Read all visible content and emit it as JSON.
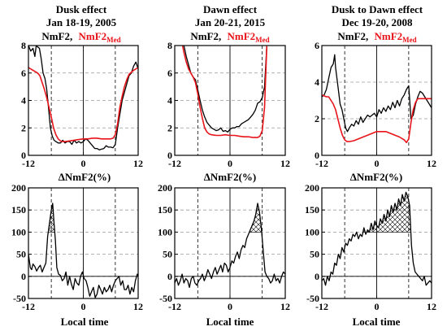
{
  "figure": {
    "xlabel": "Local time",
    "legend": {
      "obs": "NmF2,",
      "med_base": "NmF2",
      "med_sub": "Med",
      "obs_color": "#000000",
      "med_color": "#e8141a"
    }
  },
  "panels": [
    {
      "title": "Dusk effect",
      "subtitle": "Jan 18-19, 2005"
    },
    {
      "title": "Dawn effect",
      "subtitle": "Jan 20-21, 2015"
    },
    {
      "title": "Dusk to Dawn effect",
      "subtitle": "Dec 19-20, 2008"
    }
  ],
  "delta_label": "ΔNmF2(%)",
  "chart_data": [
    {
      "type": "line",
      "panel": "top-1",
      "xlim": [
        -12,
        12
      ],
      "ylim": [
        0,
        8
      ],
      "xticks": [
        "-12",
        "0",
        "12"
      ],
      "yticks": [
        "0",
        "2",
        "4",
        "6",
        "8"
      ],
      "vlines": [
        -7,
        7
      ],
      "series": [
        {
          "name": "NmF2",
          "color": "#000000",
          "x": [
            -12,
            -11.5,
            -11,
            -10.6,
            -10.3,
            -10,
            -9.6,
            -9.2,
            -8.8,
            -8.4,
            -8,
            -7.6,
            -7.2,
            -6.8,
            -6.4,
            -6,
            -5.5,
            -5,
            -4.5,
            -4,
            -3.5,
            -3,
            -2.5,
            -2,
            -1.5,
            -1,
            -0.5,
            0,
            0.5,
            1,
            1.5,
            2,
            2.5,
            3,
            3.5,
            4,
            4.5,
            5,
            5.5,
            6,
            6.5,
            7,
            7.5,
            8,
            8.5,
            9,
            9.5,
            10,
            10.5,
            11,
            11.5,
            12
          ],
          "y": [
            8,
            7.6,
            7.8,
            7.2,
            8,
            7.9,
            7.8,
            7,
            6,
            5.6,
            4.8,
            3.4,
            2,
            1.4,
            1.1,
            1.0,
            0.9,
            0.9,
            1.1,
            0.9,
            1.0,
            1.0,
            0.8,
            1.1,
            0.9,
            1.0,
            0.9,
            1.0,
            1.2,
            1.1,
            0.9,
            0.7,
            0.5,
            0.5,
            0.4,
            0.45,
            0.5,
            0.7,
            0.6,
            0.6,
            0.55,
            0.8,
            2.0,
            3.0,
            4.0,
            4.6,
            5.2,
            5.8,
            6.0,
            6.5,
            6.8,
            6.3
          ]
        },
        {
          "name": "NmF2Med",
          "color": "#e8141a",
          "x": [
            -12,
            -11,
            -10,
            -9.5,
            -9,
            -8.5,
            -8,
            -7.5,
            -7,
            -6.5,
            -6,
            -5.5,
            -5,
            -4.5,
            -4,
            -3,
            -2,
            -1,
            0,
            1,
            2,
            3,
            4,
            5,
            6,
            6.5,
            7,
            7.5,
            8,
            8.5,
            9,
            9.5,
            10,
            11,
            12
          ],
          "y": [
            6.4,
            6.2,
            6.0,
            5.8,
            5.3,
            4.8,
            4.2,
            3.5,
            2.8,
            2.0,
            1.5,
            1.2,
            1.05,
            1.0,
            1.0,
            1.05,
            1.1,
            1.15,
            1.2,
            1.2,
            1.25,
            1.25,
            1.2,
            1.2,
            1.2,
            1.25,
            1.5,
            2.3,
            3.5,
            4.3,
            5.0,
            5.5,
            5.9,
            6.2,
            6.4
          ]
        }
      ]
    },
    {
      "type": "line",
      "panel": "top-2",
      "xlim": [
        -12,
        12
      ],
      "ylim": [
        0,
        8
      ],
      "xticks": [
        "-12",
        "0",
        "12"
      ],
      "yticks": [
        "0",
        "2",
        "4",
        "6",
        "8"
      ],
      "vlines": [
        -7,
        7
      ],
      "series": [
        {
          "name": "NmF2",
          "color": "#000000",
          "x": [
            -10,
            -9.5,
            -9,
            -8.5,
            -8,
            -7.5,
            -7,
            -6.5,
            -6,
            -5.5,
            -5,
            -4.5,
            -4,
            -3.5,
            -3,
            -2.5,
            -2,
            -1.5,
            -1,
            -0.5,
            0,
            0.5,
            1,
            1.5,
            2,
            2.5,
            3,
            3.5,
            4,
            4.5,
            5,
            5.5,
            6,
            6.5,
            7,
            7.5,
            8
          ],
          "y": [
            8,
            7.2,
            6.6,
            6.0,
            5.7,
            5.5,
            4.8,
            4.0,
            3.3,
            2.8,
            2.4,
            2.2,
            2.0,
            1.9,
            1.8,
            1.85,
            2.0,
            1.75,
            1.8,
            1.7,
            1.9,
            2.0,
            2.0,
            2.1,
            2.1,
            2.3,
            2.4,
            2.5,
            2.6,
            2.8,
            3.0,
            3.3,
            3.8,
            3.9,
            4.2,
            5.0,
            8
          ]
        },
        {
          "name": "NmF2Med",
          "color": "#e8141a",
          "x": [
            -10.3,
            -10,
            -9.5,
            -9,
            -8.5,
            -8,
            -7.5,
            -7,
            -6.5,
            -6,
            -5.5,
            -5,
            -4.5,
            -4,
            -3,
            -2,
            -1,
            0,
            1,
            2,
            3,
            4,
            5,
            6,
            6.5,
            7,
            7.5,
            8
          ],
          "y": [
            8,
            7.5,
            6.8,
            6.3,
            6.0,
            5.7,
            5.3,
            4.5,
            3.5,
            2.7,
            2.0,
            1.7,
            1.55,
            1.5,
            1.45,
            1.45,
            1.5,
            1.45,
            1.45,
            1.4,
            1.35,
            1.35,
            1.3,
            1.3,
            1.4,
            1.8,
            3.5,
            8
          ]
        }
      ]
    },
    {
      "type": "line",
      "panel": "top-3",
      "xlim": [
        -12,
        12
      ],
      "ylim": [
        0,
        6
      ],
      "xticks": [
        "-12",
        "0",
        "12"
      ],
      "yticks": [
        "0",
        "2",
        "4",
        "6"
      ],
      "vlines": [
        -7,
        7
      ],
      "series": [
        {
          "name": "NmF2",
          "color": "#000000",
          "x": [
            -12,
            -11.5,
            -11,
            -10.5,
            -10,
            -9.5,
            -9.2,
            -9,
            -8.7,
            -8.4,
            -8,
            -7.6,
            -7.2,
            -6.8,
            -6.4,
            -6,
            -5.5,
            -5,
            -4.5,
            -4,
            -3.5,
            -3,
            -2.5,
            -2,
            -1.5,
            -1,
            -0.5,
            0,
            0.5,
            1,
            1.5,
            2,
            2.5,
            3,
            3.5,
            4,
            4.5,
            5,
            5.5,
            6,
            6.5,
            7,
            7.5,
            8,
            8.5,
            9,
            9.5,
            10,
            10.5,
            11,
            11.5,
            12
          ],
          "y": [
            3.2,
            3.3,
            3.6,
            4.2,
            4.8,
            5.0,
            5.5,
            4.8,
            4.2,
            3.6,
            2.8,
            2.5,
            2.0,
            1.5,
            1.3,
            1.5,
            1.7,
            1.6,
            1.9,
            1.7,
            2.1,
            1.8,
            2.0,
            2.2,
            2.1,
            2.2,
            2.3,
            2.1,
            2.5,
            2.3,
            2.6,
            2.4,
            2.7,
            2.5,
            2.9,
            2.6,
            3.0,
            2.7,
            3.1,
            3.3,
            3.6,
            3.8,
            2.0,
            2.2,
            2.8,
            3.2,
            3.5,
            3.4,
            3.2,
            3.0,
            2.8,
            2.6
          ]
        },
        {
          "name": "NmF2Med",
          "color": "#e8141a",
          "x": [
            -12,
            -11,
            -10.5,
            -10,
            -9.5,
            -9,
            -8.5,
            -8,
            -7.5,
            -7,
            -6.5,
            -6,
            -5,
            -4,
            -3,
            -2,
            -1,
            0,
            1,
            2,
            3,
            4,
            5,
            6,
            6.5,
            7,
            7.5,
            8,
            8.5,
            9,
            9.5,
            10,
            11,
            12
          ],
          "y": [
            3.3,
            3.2,
            3.2,
            3.0,
            2.8,
            2.5,
            2.0,
            1.5,
            1.1,
            0.85,
            0.75,
            0.75,
            0.8,
            0.9,
            1.0,
            1.1,
            1.2,
            1.3,
            1.3,
            1.3,
            1.2,
            1.1,
            1.0,
            0.85,
            0.7,
            0.9,
            1.8,
            2.5,
            2.9,
            3.1,
            3.1,
            3.1,
            3.1,
            3.1
          ]
        }
      ]
    },
    {
      "type": "line",
      "panel": "bottom-1",
      "xlim": [
        -12,
        12
      ],
      "ylim": [
        -50,
        200
      ],
      "xticks": [
        "-12",
        "0",
        "12"
      ],
      "yticks": [
        "-50",
        "0",
        "50",
        "100",
        "150",
        "200"
      ],
      "vlines": [
        -7,
        7
      ],
      "threshold": 100,
      "hatch": true,
      "series": [
        {
          "name": "ΔNmF2",
          "color": "#000000",
          "x": [
            -12,
            -11.6,
            -11.3,
            -11,
            -10.6,
            -10.2,
            -9.8,
            -9.4,
            -9,
            -8.6,
            -8.2,
            -7.8,
            -7.4,
            -7,
            -6.7,
            -6.4,
            -6.1,
            -5.8,
            -5.4,
            -5,
            -4.6,
            -4.2,
            -3.8,
            -3.4,
            -3,
            -2.6,
            -2.2,
            -1.8,
            -1.4,
            -1,
            -0.6,
            -0.2,
            0.2,
            0.6,
            1,
            1.4,
            1.8,
            2.2,
            2.6,
            3,
            3.4,
            3.8,
            4.2,
            4.6,
            5,
            5.4,
            5.8,
            6.2,
            6.6,
            7,
            7.4,
            7.8,
            8.2,
            8.6,
            9,
            9.4,
            9.8,
            10.2,
            10.6,
            11,
            11.4,
            11.8,
            12
          ],
          "y": [
            50,
            20,
            15,
            28,
            22,
            12,
            20,
            25,
            10,
            20,
            30,
            90,
            120,
            150,
            165,
            120,
            80,
            20,
            5,
            2,
            -10,
            -5,
            10,
            -20,
            0,
            -18,
            -30,
            -5,
            -15,
            -20,
            0,
            10,
            -5,
            -10,
            -25,
            -45,
            -35,
            -25,
            -48,
            -40,
            -20,
            -30,
            -40,
            -25,
            -35,
            -30,
            -20,
            -35,
            -20,
            -10,
            -5,
            0,
            -20,
            -10,
            -30,
            -30,
            -20,
            -40,
            -25,
            -35,
            -10,
            5,
            0
          ]
        }
      ]
    },
    {
      "type": "line",
      "panel": "bottom-2",
      "xlim": [
        -12,
        12
      ],
      "ylim": [
        -50,
        200
      ],
      "xticks": [
        "-12",
        "0",
        "12"
      ],
      "yticks": [
        "-50",
        "0",
        "50",
        "100",
        "150",
        "200"
      ],
      "vlines": [
        -7,
        7
      ],
      "threshold": 100,
      "hatch": true,
      "series": [
        {
          "name": "ΔNmF2",
          "color": "#000000",
          "x": [
            -12,
            -11.6,
            -11.2,
            -10.8,
            -10.4,
            -10,
            -9.6,
            -9.2,
            -8.8,
            -8.4,
            -8,
            -7.6,
            -7.2,
            -6.8,
            -6.4,
            -6,
            -5.6,
            -5.2,
            -4.8,
            -4.4,
            -4,
            -3.6,
            -3.2,
            -2.8,
            -2.4,
            -2,
            -1.6,
            -1.2,
            -0.8,
            -0.4,
            0,
            0.4,
            0.8,
            1.2,
            1.6,
            2,
            2.4,
            2.8,
            3.2,
            3.6,
            4,
            4.4,
            4.8,
            5.2,
            5.6,
            6,
            6.4,
            6.8,
            7.2,
            7.6,
            8,
            8.4,
            8.8,
            9.2,
            9.6,
            10,
            10.4,
            10.8,
            11.2,
            11.6,
            12
          ],
          "y": [
            -15,
            -5,
            -20,
            -10,
            5,
            -15,
            -5,
            -10,
            -25,
            -5,
            0,
            -15,
            -20,
            -10,
            -5,
            5,
            -10,
            0,
            15,
            5,
            -5,
            10,
            20,
            5,
            15,
            25,
            10,
            30,
            25,
            10,
            20,
            35,
            30,
            45,
            55,
            40,
            60,
            70,
            65,
            85,
            95,
            105,
            115,
            125,
            140,
            165,
            145,
            110,
            60,
            10,
            0,
            -5,
            -15,
            -10,
            5,
            -10,
            -5,
            -15,
            0,
            10,
            5
          ]
        }
      ]
    },
    {
      "type": "line",
      "panel": "bottom-3",
      "xlim": [
        -12,
        12
      ],
      "ylim": [
        -50,
        200
      ],
      "xticks": [
        "-12",
        "0",
        "12"
      ],
      "yticks": [
        "-50",
        "0",
        "50",
        "100",
        "150",
        "200"
      ],
      "vlines": [
        -7,
        7
      ],
      "threshold": 100,
      "hatch": true,
      "series": [
        {
          "name": "ΔNmF2",
          "color": "#000000",
          "x": [
            -12,
            -11.6,
            -11.2,
            -10.8,
            -10.4,
            -10,
            -9.6,
            -9.2,
            -8.8,
            -8.4,
            -8,
            -7.6,
            -7.2,
            -6.8,
            -6.4,
            -6,
            -5.6,
            -5.2,
            -4.8,
            -4.4,
            -4,
            -3.6,
            -3.2,
            -2.8,
            -2.4,
            -2,
            -1.6,
            -1.2,
            -0.8,
            -0.4,
            0,
            0.4,
            0.8,
            1.2,
            1.6,
            2,
            2.4,
            2.8,
            3.2,
            3.6,
            4,
            4.4,
            4.8,
            5.2,
            5.6,
            6,
            6.4,
            6.8,
            7.2,
            7.6,
            8,
            8.4,
            8.8,
            9.2,
            9.6,
            10,
            10.4,
            10.8,
            11.2,
            11.6,
            12
          ],
          "y": [
            -10,
            -5,
            -20,
            0,
            -10,
            10,
            5,
            30,
            25,
            50,
            40,
            65,
            55,
            75,
            70,
            85,
            80,
            95,
            90,
            100,
            85,
            95,
            90,
            110,
            95,
            105,
            100,
            120,
            105,
            125,
            115,
            110,
            130,
            120,
            140,
            125,
            150,
            135,
            160,
            145,
            165,
            150,
            175,
            160,
            185,
            170,
            190,
            180,
            160,
            70,
            30,
            10,
            5,
            0,
            -5,
            -10,
            0,
            -20,
            -15,
            -10,
            -15
          ]
        }
      ]
    }
  ]
}
